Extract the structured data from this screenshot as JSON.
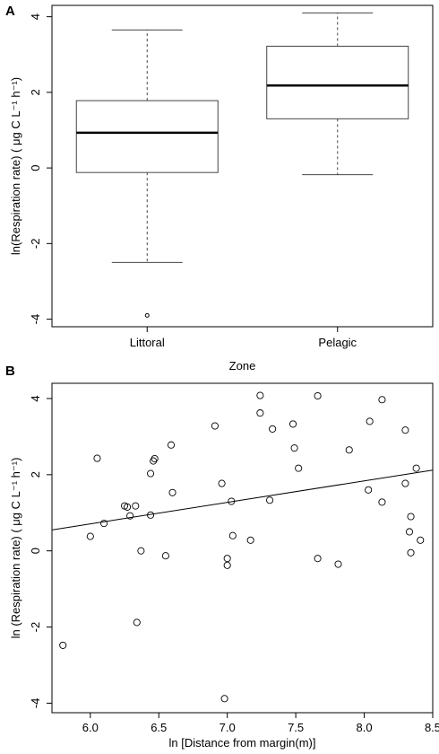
{
  "chart_data": [
    {
      "panel": "A",
      "type": "box",
      "xlabel": "Zone",
      "ylabel": "ln(Respiration rate)  ( μg C L⁻¹ h⁻¹)",
      "ylim": [
        -4.2,
        4.3
      ],
      "yticks": [
        -4,
        -2,
        0,
        2,
        4
      ],
      "categories": [
        "Littoral",
        "Pelagic"
      ],
      "boxes": [
        {
          "name": "Littoral",
          "whisker_low": -2.5,
          "q1": -0.12,
          "median": 0.93,
          "q3": 1.78,
          "whisker_high": 3.65,
          "outliers": [
            -3.9
          ]
        },
        {
          "name": "Pelagic",
          "whisker_low": -0.18,
          "q1": 1.3,
          "median": 2.18,
          "q3": 3.22,
          "whisker_high": 4.1,
          "outliers": []
        }
      ]
    },
    {
      "panel": "B",
      "type": "scatter",
      "xlabel": "ln [Distance from margin(m)]",
      "ylabel": "ln (Respiration rate)  ( μg C L⁻¹ h⁻¹)",
      "xlim": [
        5.72,
        8.5
      ],
      "ylim": [
        -4.25,
        4.4
      ],
      "xticks": [
        6.0,
        6.5,
        7.0,
        7.5,
        8.0,
        8.5
      ],
      "xtick_labels": [
        "6.0",
        "6.5",
        "7.0",
        "7.5",
        "8.0",
        "8.5"
      ],
      "yticks": [
        -4,
        -2,
        0,
        2,
        4
      ],
      "points": [
        [
          5.8,
          -2.48
        ],
        [
          6.0,
          0.38
        ],
        [
          6.05,
          2.43
        ],
        [
          6.1,
          0.72
        ],
        [
          6.25,
          1.18
        ],
        [
          6.27,
          1.15
        ],
        [
          6.29,
          0.92
        ],
        [
          6.33,
          1.18
        ],
        [
          6.34,
          -1.88
        ],
        [
          6.37,
          0.0
        ],
        [
          6.44,
          0.94
        ],
        [
          6.44,
          2.03
        ],
        [
          6.46,
          2.36
        ],
        [
          6.47,
          2.42
        ],
        [
          6.55,
          -0.13
        ],
        [
          6.59,
          2.78
        ],
        [
          6.6,
          1.53
        ],
        [
          6.91,
          3.28
        ],
        [
          6.96,
          1.77
        ],
        [
          6.98,
          -3.88
        ],
        [
          7.0,
          -0.2
        ],
        [
          7.0,
          -0.38
        ],
        [
          7.03,
          1.3
        ],
        [
          7.04,
          0.4
        ],
        [
          7.17,
          0.28
        ],
        [
          7.24,
          4.08
        ],
        [
          7.24,
          3.62
        ],
        [
          7.31,
          1.33
        ],
        [
          7.33,
          3.2
        ],
        [
          7.48,
          3.33
        ],
        [
          7.49,
          2.7
        ],
        [
          7.52,
          2.17
        ],
        [
          7.66,
          4.07
        ],
        [
          7.66,
          -0.2
        ],
        [
          7.81,
          -0.35
        ],
        [
          7.89,
          2.65
        ],
        [
          8.03,
          1.6
        ],
        [
          8.04,
          3.4
        ],
        [
          8.13,
          3.97
        ],
        [
          8.13,
          1.28
        ],
        [
          8.3,
          3.17
        ],
        [
          8.3,
          1.77
        ],
        [
          8.33,
          0.5
        ],
        [
          8.34,
          0.9
        ],
        [
          8.34,
          -0.05
        ],
        [
          8.38,
          2.17
        ],
        [
          8.41,
          0.28
        ]
      ],
      "fit_line": {
        "x": [
          5.72,
          8.5
        ],
        "y": [
          0.55,
          2.12
        ]
      }
    }
  ],
  "labels": {
    "panel_a": "A",
    "panel_b": "B"
  },
  "colors": {
    "ink": "#000000",
    "box_line": "#444444",
    "background": "#ffffff"
  }
}
